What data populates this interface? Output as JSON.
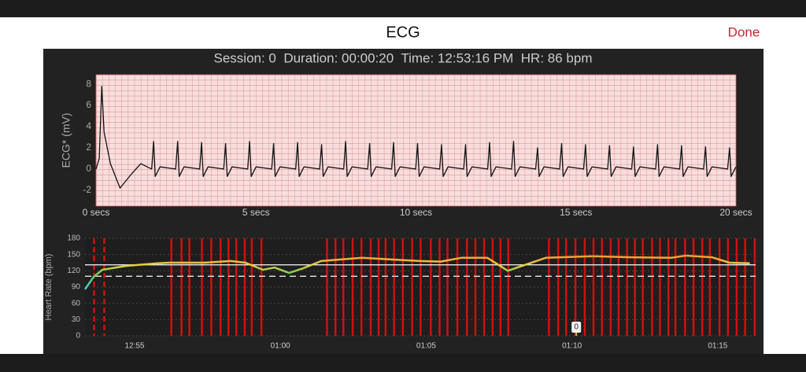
{
  "header": {
    "title": "ECG",
    "done": "Done"
  },
  "session_info": "Session: 0  Duration: 00:00:20  Time: 12:53:16 PM  HR: 86 bpm",
  "chart_data": [
    {
      "type": "line",
      "ylabel": "ECG* (mV)",
      "color": "#111111",
      "xlim": [
        0,
        20
      ],
      "ylim": [
        -3.5,
        8.9
      ],
      "xticks": [
        {
          "value": 0,
          "label": "0 secs"
        },
        {
          "value": 5,
          "label": "5 secs"
        },
        {
          "value": 10,
          "label": "10 secs"
        },
        {
          "value": 15,
          "label": "15 secs"
        },
        {
          "value": 20,
          "label": "20 secs"
        }
      ],
      "yticks": [
        -2,
        0,
        2,
        4,
        6,
        8
      ],
      "x": [
        0,
        0.1,
        0.18,
        0.25,
        0.45,
        0.75,
        1.1,
        1.4,
        1.6,
        1.74,
        1.8,
        1.85,
        2.0,
        2.49,
        2.55,
        2.6,
        2.75,
        3.24,
        3.3,
        3.35,
        3.5,
        3.99,
        4.05,
        4.1,
        4.25,
        4.74,
        4.8,
        4.85,
        5.0,
        5.49,
        5.55,
        5.6,
        5.75,
        6.24,
        6.3,
        6.35,
        6.5,
        6.99,
        7.05,
        7.1,
        7.25,
        7.74,
        7.8,
        7.85,
        8.0,
        8.49,
        8.55,
        8.6,
        8.75,
        9.24,
        9.3,
        9.35,
        9.5,
        9.99,
        10.05,
        10.1,
        10.25,
        10.74,
        10.8,
        10.85,
        11.0,
        11.49,
        11.55,
        11.6,
        11.75,
        12.24,
        12.3,
        12.35,
        12.5,
        12.99,
        13.05,
        13.1,
        13.25,
        13.74,
        13.8,
        13.85,
        14.0,
        14.49,
        14.55,
        14.6,
        14.75,
        15.24,
        15.3,
        15.35,
        15.5,
        15.99,
        16.05,
        16.1,
        16.25,
        16.74,
        16.8,
        16.85,
        17.0,
        17.49,
        17.55,
        17.6,
        17.75,
        18.24,
        18.3,
        18.35,
        18.5,
        18.99,
        19.05,
        19.1,
        19.25,
        19.74,
        19.8,
        19.85,
        20.0
      ],
      "values": [
        0,
        1,
        7.8,
        3.5,
        0.5,
        -1.8,
        -0.5,
        0.5,
        0.2,
        0,
        2.6,
        -0.7,
        0.2,
        0,
        2.6,
        -0.7,
        0.2,
        0,
        2.5,
        -0.7,
        0.2,
        0,
        2.4,
        -0.7,
        0.2,
        0,
        2.6,
        -0.7,
        0.2,
        0,
        2.4,
        -0.7,
        0.2,
        0,
        2.5,
        -0.7,
        0.2,
        0,
        2.3,
        -0.7,
        0.2,
        0,
        2.6,
        -0.7,
        0.2,
        0,
        2.4,
        -0.7,
        0.2,
        0,
        2.5,
        -0.7,
        0.2,
        0,
        2.4,
        -0.7,
        0.2,
        0,
        2.3,
        -0.7,
        0.2,
        0,
        2.3,
        -0.7,
        0.2,
        0,
        2.5,
        -0.7,
        0.2,
        0,
        2.6,
        -0.7,
        0.2,
        0,
        2.0,
        -0.7,
        0.2,
        0,
        2.4,
        -0.7,
        0.2,
        0,
        2.3,
        -0.7,
        0.2,
        0,
        2.2,
        -0.7,
        0.2,
        0,
        2.1,
        -0.7,
        0.2,
        0,
        2.3,
        -0.7,
        0.2,
        0,
        2.2,
        -0.7,
        0.2,
        0,
        2.1,
        -0.7,
        0.2,
        0,
        2.0,
        -0.7,
        0.2
      ]
    },
    {
      "type": "line",
      "ylabel": "Heart Rate (bpm)",
      "xlim": [
        53.3,
        76.3
      ],
      "ylim": [
        0,
        180
      ],
      "xticks": [
        {
          "value": 55,
          "label": "12:55"
        },
        {
          "value": 60,
          "label": "01:00"
        },
        {
          "value": 65,
          "label": "01:05"
        },
        {
          "value": 70,
          "label": "01:10"
        },
        {
          "value": 75,
          "label": "01:15"
        }
      ],
      "yticks": [
        0,
        30,
        60,
        90,
        120,
        150,
        180
      ],
      "grid": true,
      "x": [
        53.3,
        53.6,
        53.9,
        54.7,
        55.8,
        56.2,
        57.4,
        58.3,
        58.8,
        59.4,
        59.8,
        60.3,
        60.8,
        61.4,
        62.8,
        63.8,
        64.8,
        65.5,
        66.2,
        67.1,
        67.8,
        69.1,
        70.7,
        72.0,
        73.4,
        73.9,
        74.8,
        75.4,
        76.1
      ],
      "values": [
        86,
        109,
        122,
        129,
        134,
        135,
        135,
        138,
        135,
        122,
        126,
        116,
        125,
        138,
        144,
        141,
        138,
        137,
        144,
        144,
        120,
        144,
        147,
        145,
        144,
        148,
        145,
        135,
        134
      ],
      "reference_lines": [
        {
          "value": 131,
          "style": "solid",
          "color": "#ffffff"
        },
        {
          "value": 110,
          "style": "dashed",
          "color": "#ffffff"
        }
      ],
      "marker_color": "#d01010",
      "dashed_markers": [
        53.61,
        53.96
      ],
      "event_markers": [
        56.26,
        56.61,
        56.88,
        57.31,
        57.63,
        57.95,
        58.22,
        58.49,
        58.78,
        59.02,
        59.35,
        61.6,
        61.89,
        62.16,
        62.48,
        62.78,
        63.1,
        63.37,
        63.61,
        63.9,
        64.2,
        64.52,
        64.81,
        65.16,
        65.46,
        65.73,
        66.07,
        66.4,
        66.69,
        66.99,
        67.28,
        67.55,
        67.82,
        69.21,
        69.53,
        69.8,
        70.12,
        70.44,
        70.74,
        71.03,
        71.33,
        71.6,
        71.89,
        72.16,
        72.43,
        72.75,
        73.02,
        73.31,
        73.55,
        73.88,
        74.17,
        74.47,
        74.73,
        75.06,
        75.35,
        75.65,
        75.94,
        76.27
      ],
      "flag": {
        "x": 70.15,
        "label": "0"
      }
    }
  ]
}
